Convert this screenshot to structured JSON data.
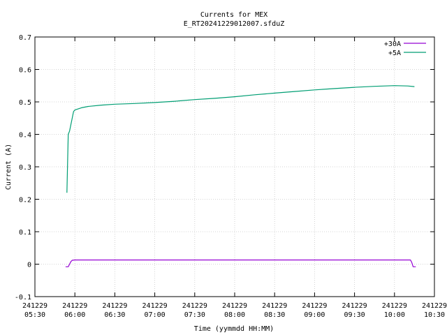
{
  "chart_data": {
    "type": "line",
    "title": "Currents for MEX",
    "subtitle": "E_RT20241229012007.sfduZ",
    "xlabel": "Time (yymmdd HH:MM)",
    "ylabel": "Current (A)",
    "xlim": [
      "2024-12-29 05:30",
      "2024-12-29 10:30"
    ],
    "ylim": [
      -0.1,
      0.7
    ],
    "grid": true,
    "legend_position": "top-right",
    "y_ticks": [
      "-0.1",
      "0",
      "0.1",
      "0.2",
      "0.3",
      "0.4",
      "0.5",
      "0.6",
      "0.7"
    ],
    "x_ticks": [
      {
        "date": "241229",
        "time": "05:30"
      },
      {
        "date": "241229",
        "time": "06:00"
      },
      {
        "date": "241229",
        "time": "06:30"
      },
      {
        "date": "241229",
        "time": "07:00"
      },
      {
        "date": "241229",
        "time": "07:30"
      },
      {
        "date": "241229",
        "time": "08:00"
      },
      {
        "date": "241229",
        "time": "08:30"
      },
      {
        "date": "241229",
        "time": "09:00"
      },
      {
        "date": "241229",
        "time": "09:30"
      },
      {
        "date": "241229",
        "time": "10:00"
      },
      {
        "date": "241229",
        "time": "10:30"
      }
    ],
    "series": [
      {
        "name": "+30A",
        "color": "#9400d3",
        "x": [
          "05:53",
          "05:55",
          "05:56",
          "05:57",
          "05:58",
          "06:00",
          "06:30",
          "07:00",
          "07:30",
          "08:00",
          "08:30",
          "09:00",
          "09:30",
          "10:00",
          "10:12",
          "10:13",
          "10:14",
          "10:15",
          "10:16"
        ],
        "y": [
          -0.008,
          -0.008,
          0.0,
          0.008,
          0.012,
          0.013,
          0.013,
          0.013,
          0.013,
          0.013,
          0.013,
          0.013,
          0.013,
          0.013,
          0.013,
          0.005,
          -0.008,
          -0.008,
          -0.008
        ]
      },
      {
        "name": "+5A",
        "color": "#009e73",
        "x": [
          "05:54",
          "05:54",
          "05:55",
          "05:56",
          "05:57",
          "05:58",
          "05:59",
          "06:00",
          "06:05",
          "06:10",
          "06:20",
          "06:30",
          "06:45",
          "07:00",
          "07:15",
          "07:30",
          "07:45",
          "08:00",
          "08:15",
          "08:30",
          "08:45",
          "09:00",
          "09:15",
          "09:30",
          "09:45",
          "10:00",
          "10:10",
          "10:15"
        ],
        "y": [
          0.22,
          0.22,
          0.4,
          0.41,
          0.43,
          0.45,
          0.47,
          0.475,
          0.482,
          0.486,
          0.49,
          0.493,
          0.495,
          0.498,
          0.502,
          0.507,
          0.511,
          0.516,
          0.522,
          0.527,
          0.532,
          0.537,
          0.541,
          0.545,
          0.548,
          0.55,
          0.549,
          0.547
        ]
      }
    ]
  }
}
